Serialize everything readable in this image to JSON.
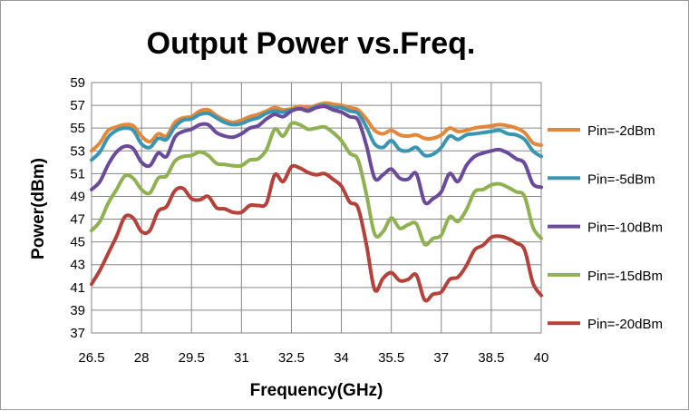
{
  "chart_data": {
    "type": "line",
    "title": "Output Power vs.Freq.",
    "xlabel": "Frequency(GHz)",
    "ylabel": "Power(dBm)",
    "xlim": [
      26.5,
      40
    ],
    "ylim": [
      37,
      59
    ],
    "x_ticks": [
      26.5,
      28,
      29.5,
      31,
      32.5,
      34,
      35.5,
      37,
      38.5,
      40
    ],
    "x_tick_labels": [
      "26.5",
      "28",
      "29.5",
      "31",
      "32.5",
      "34",
      "35.5",
      "37",
      "38.5",
      "40"
    ],
    "y_ticks": [
      37,
      39,
      41,
      43,
      45,
      47,
      49,
      51,
      53,
      55,
      57,
      59
    ],
    "y_tick_labels": [
      "37",
      "39",
      "41",
      "43",
      "45",
      "47",
      "49",
      "51",
      "53",
      "55",
      "57",
      "59"
    ],
    "grid": true,
    "legend_position": "right",
    "x": [
      26.5,
      26.75,
      27.0,
      27.25,
      27.5,
      27.75,
      28.0,
      28.25,
      28.5,
      28.75,
      29.0,
      29.25,
      29.5,
      29.75,
      30.0,
      30.25,
      30.5,
      30.75,
      31.0,
      31.25,
      31.5,
      31.75,
      32.0,
      32.25,
      32.5,
      32.75,
      33.0,
      33.25,
      33.5,
      33.75,
      34.0,
      34.25,
      34.5,
      34.75,
      35.0,
      35.25,
      35.5,
      35.75,
      36.0,
      36.25,
      36.5,
      36.75,
      37.0,
      37.25,
      37.5,
      37.75,
      38.0,
      38.25,
      38.5,
      38.75,
      39.0,
      39.25,
      39.5,
      39.75,
      40.0
    ],
    "series": [
      {
        "name": "Pin=-2dBm",
        "color": "#e3883a",
        "values": [
          53.0,
          53.7,
          54.8,
          55.1,
          55.3,
          55.2,
          54.3,
          53.8,
          54.5,
          54.3,
          55.5,
          55.9,
          56.0,
          56.5,
          56.6,
          56.1,
          55.7,
          55.5,
          55.7,
          56.0,
          56.2,
          56.5,
          56.8,
          56.6,
          56.7,
          56.9,
          56.8,
          57.0,
          57.2,
          57.1,
          57.0,
          56.8,
          56.6,
          55.8,
          54.8,
          54.5,
          54.8,
          54.4,
          54.3,
          54.4,
          54.1,
          54.1,
          54.4,
          55.0,
          54.7,
          54.8,
          55.0,
          55.1,
          55.2,
          55.3,
          55.2,
          55.0,
          54.6,
          53.7,
          53.5
        ]
      },
      {
        "name": "Pin=-5dBm",
        "color": "#3a95b0",
        "values": [
          52.2,
          52.9,
          54.2,
          54.8,
          55.0,
          54.8,
          53.6,
          53.3,
          54.1,
          54.0,
          55.1,
          55.7,
          55.8,
          56.2,
          56.3,
          55.9,
          55.5,
          55.3,
          55.4,
          55.7,
          55.9,
          56.3,
          56.5,
          56.4,
          56.6,
          56.7,
          56.6,
          56.9,
          57.0,
          56.8,
          56.8,
          56.5,
          56.3,
          55.1,
          53.6,
          53.3,
          53.9,
          53.1,
          53.0,
          53.3,
          52.6,
          52.7,
          53.3,
          54.3,
          54.0,
          54.4,
          54.5,
          54.6,
          54.7,
          54.8,
          54.5,
          54.4,
          54.0,
          53.0,
          52.5
        ]
      },
      {
        "name": "Pin=-10dBm",
        "color": "#6a4b9a",
        "values": [
          49.6,
          50.3,
          51.8,
          52.9,
          53.4,
          53.2,
          52.0,
          51.7,
          52.8,
          52.5,
          54.2,
          54.7,
          54.9,
          55.3,
          55.3,
          54.6,
          54.3,
          54.2,
          54.5,
          55.0,
          55.2,
          55.8,
          56.2,
          56.0,
          56.5,
          56.7,
          56.5,
          56.8,
          56.9,
          56.6,
          56.4,
          56.0,
          55.7,
          53.5,
          50.6,
          50.9,
          51.4,
          50.6,
          50.5,
          51.0,
          48.5,
          48.8,
          49.4,
          51.0,
          50.3,
          51.7,
          52.5,
          52.8,
          53.0,
          53.1,
          52.8,
          52.3,
          51.9,
          50.1,
          49.8
        ]
      },
      {
        "name": "Pin=-15dBm",
        "color": "#8fb152",
        "values": [
          46.0,
          46.8,
          48.4,
          49.6,
          50.8,
          50.6,
          49.6,
          49.3,
          50.6,
          50.8,
          52.1,
          52.5,
          52.6,
          52.9,
          52.6,
          51.9,
          51.8,
          51.7,
          51.7,
          52.2,
          52.3,
          53.1,
          54.9,
          54.3,
          55.4,
          55.3,
          54.9,
          55.0,
          55.1,
          54.6,
          53.9,
          52.8,
          52.2,
          49.2,
          45.7,
          45.9,
          47.1,
          46.2,
          46.5,
          46.6,
          44.8,
          45.3,
          45.6,
          47.2,
          46.8,
          47.8,
          49.4,
          49.6,
          50.0,
          50.1,
          49.8,
          49.4,
          49.0,
          46.3,
          45.3
        ]
      },
      {
        "name": "Pin=-20dBm",
        "color": "#b4413a",
        "values": [
          41.3,
          42.5,
          44.0,
          45.5,
          47.2,
          47.1,
          45.9,
          46.0,
          47.7,
          48.1,
          49.5,
          49.7,
          48.8,
          48.7,
          49.0,
          48.0,
          47.9,
          47.6,
          47.6,
          48.2,
          48.2,
          48.4,
          50.9,
          50.3,
          51.6,
          51.5,
          51.1,
          50.9,
          51.0,
          50.5,
          49.9,
          48.5,
          48.0,
          44.8,
          40.8,
          41.8,
          42.3,
          41.6,
          41.7,
          42.1,
          39.9,
          40.4,
          40.6,
          41.7,
          41.9,
          42.9,
          44.3,
          44.7,
          45.4,
          45.5,
          45.3,
          44.9,
          44.3,
          41.4,
          40.3
        ]
      }
    ]
  }
}
